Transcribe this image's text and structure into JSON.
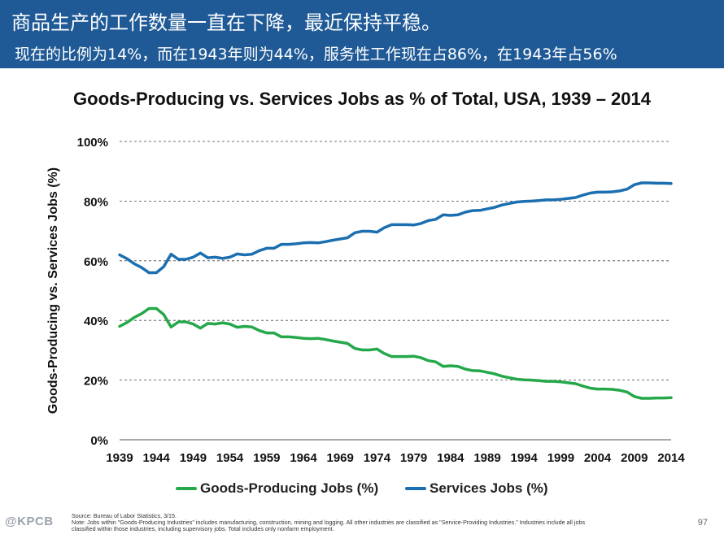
{
  "header": {
    "headline": "商品生产的工作数量一直在下降，最近保持平稳。",
    "subheadline": "现在的比例为14%，而在1943年则为44%，服务性工作现在占86%，在1943年占56%"
  },
  "chart_data": {
    "type": "line",
    "title": "Goods-Producing vs. Services Jobs as % of Total, USA, 1939 – 2014",
    "xlabel": "",
    "ylabel": "Goods-Producing vs. Services Jobs (%)",
    "xlim": [
      1939,
      2014
    ],
    "ylim": [
      0,
      100
    ],
    "x_ticks": [
      1939,
      1944,
      1949,
      1954,
      1959,
      1964,
      1969,
      1974,
      1979,
      1984,
      1989,
      1994,
      1999,
      2004,
      2009,
      2014
    ],
    "y_ticks": [
      "0%",
      "20%",
      "40%",
      "60%",
      "80%",
      "100%"
    ],
    "grid": "horizontal dashed",
    "legend_position": "bottom",
    "x": [
      1939,
      1940,
      1941,
      1942,
      1943,
      1944,
      1945,
      1946,
      1947,
      1948,
      1949,
      1950,
      1951,
      1952,
      1953,
      1954,
      1955,
      1956,
      1957,
      1958,
      1959,
      1960,
      1961,
      1962,
      1963,
      1964,
      1965,
      1966,
      1967,
      1968,
      1969,
      1970,
      1971,
      1972,
      1973,
      1974,
      1975,
      1976,
      1977,
      1978,
      1979,
      1980,
      1981,
      1982,
      1983,
      1984,
      1985,
      1986,
      1987,
      1988,
      1989,
      1990,
      1991,
      1992,
      1993,
      1994,
      1995,
      1996,
      1997,
      1998,
      1999,
      2000,
      2001,
      2002,
      2003,
      2004,
      2005,
      2006,
      2007,
      2008,
      2009,
      2010,
      2011,
      2012,
      2013,
      2014
    ],
    "series": [
      {
        "name": "Goods-Producing Jobs (%)",
        "color": "#25a84a",
        "values": [
          38,
          39.3,
          41,
          42.3,
          44,
          44,
          42,
          37.8,
          39.5,
          39.5,
          38.8,
          37.4,
          39,
          38.8,
          39.2,
          38.8,
          37.7,
          38,
          37.8,
          36.6,
          35.8,
          35.8,
          34.5,
          34.5,
          34.3,
          34,
          33.9,
          34,
          33.6,
          33.1,
          32.7,
          32.3,
          30.6,
          30.1,
          30.1,
          30.4,
          28.9,
          27.9,
          27.9,
          27.9,
          28,
          27.5,
          26.5,
          26.1,
          24.6,
          24.8,
          24.6,
          23.7,
          23.2,
          23.1,
          22.6,
          22.1,
          21.3,
          20.8,
          20.3,
          20.1,
          20,
          19.8,
          19.6,
          19.6,
          19.4,
          19.1,
          18.8,
          18,
          17.3,
          17,
          17,
          16.9,
          16.6,
          16,
          14.5,
          13.9,
          13.9,
          14,
          14,
          14.1
        ]
      },
      {
        "name": "Services Jobs (%)",
        "color": "#1b6fb0",
        "values": [
          62,
          60.7,
          59,
          57.7,
          56,
          56,
          58,
          62.2,
          60.5,
          60.5,
          61.2,
          62.6,
          61,
          61.2,
          60.8,
          61.2,
          62.3,
          62,
          62.2,
          63.4,
          64.2,
          64.2,
          65.5,
          65.5,
          65.7,
          66,
          66.1,
          66,
          66.4,
          66.9,
          67.3,
          67.7,
          69.4,
          69.9,
          69.9,
          69.6,
          71.1,
          72.1,
          72.1,
          72.1,
          72,
          72.5,
          73.5,
          73.9,
          75.4,
          75.2,
          75.4,
          76.3,
          76.8,
          76.9,
          77.4,
          77.9,
          78.7,
          79.2,
          79.7,
          79.9,
          80,
          80.2,
          80.4,
          80.4,
          80.6,
          80.9,
          81.2,
          82,
          82.7,
          83,
          83,
          83.1,
          83.4,
          84,
          85.5,
          86.1,
          86.1,
          86,
          86,
          85.9
        ]
      }
    ]
  },
  "footer": {
    "source": "Source: Bureau of Labor Statistics, 3/15.",
    "note_line1": "Note: Jobs within \"Goods-Producing Industries\" includes manufacturing, construction, mining and logging. All other industries are classified as \"Service-Providing Industries.\" Industries include all jobs",
    "note_line2": "classified within those industries, including supervisory jobs. Total includes only nonfarm employment.",
    "logo": "@KPCB",
    "page_number": "97"
  }
}
